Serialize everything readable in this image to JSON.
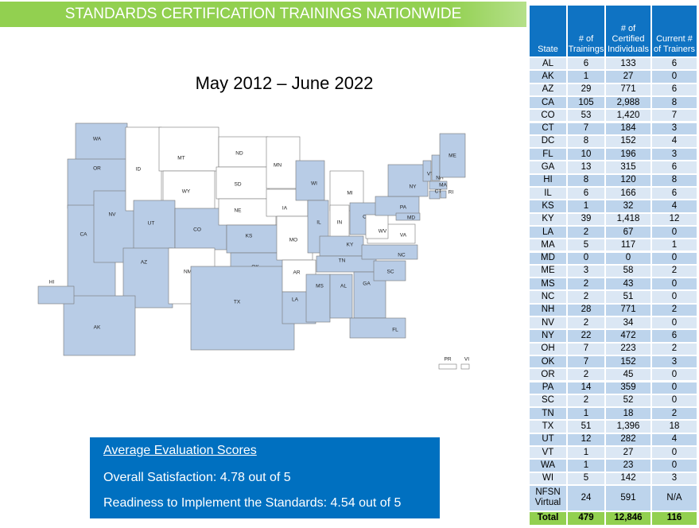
{
  "header": {
    "title": "STANDARDS CERTIFICATION TRAININGS NATIONWIDE"
  },
  "subtitle": "May 2012 – June 2022",
  "map": {
    "shaded_color": "#b8cce6",
    "unshaded_color": "#ffffff",
    "states": [
      {
        "label": "WA",
        "shaded": true
      },
      {
        "label": "OR",
        "shaded": true
      },
      {
        "label": "CA",
        "shaded": true
      },
      {
        "label": "NV",
        "shaded": true
      },
      {
        "label": "ID",
        "shaded": false
      },
      {
        "label": "MT",
        "shaded": false
      },
      {
        "label": "WY",
        "shaded": false
      },
      {
        "label": "UT",
        "shaded": true
      },
      {
        "label": "CO",
        "shaded": true
      },
      {
        "label": "AZ",
        "shaded": true
      },
      {
        "label": "NM",
        "shaded": false
      },
      {
        "label": "ND",
        "shaded": false
      },
      {
        "label": "SD",
        "shaded": false
      },
      {
        "label": "NE",
        "shaded": false
      },
      {
        "label": "KS",
        "shaded": true
      },
      {
        "label": "OK",
        "shaded": true
      },
      {
        "label": "TX",
        "shaded": true
      },
      {
        "label": "MN",
        "shaded": false
      },
      {
        "label": "IA",
        "shaded": false
      },
      {
        "label": "MO",
        "shaded": false
      },
      {
        "label": "AR",
        "shaded": false
      },
      {
        "label": "LA",
        "shaded": true
      },
      {
        "label": "WI",
        "shaded": true
      },
      {
        "label": "IL",
        "shaded": true
      },
      {
        "label": "MI",
        "shaded": false
      },
      {
        "label": "IN",
        "shaded": false
      },
      {
        "label": "OH",
        "shaded": true
      },
      {
        "label": "KY",
        "shaded": true
      },
      {
        "label": "TN",
        "shaded": true
      },
      {
        "label": "MS",
        "shaded": true
      },
      {
        "label": "AL",
        "shaded": true
      },
      {
        "label": "GA",
        "shaded": true
      },
      {
        "label": "FL",
        "shaded": true
      },
      {
        "label": "SC",
        "shaded": true
      },
      {
        "label": "NC",
        "shaded": true
      },
      {
        "label": "VA",
        "shaded": false
      },
      {
        "label": "WV",
        "shaded": false
      },
      {
        "label": "PA",
        "shaded": true
      },
      {
        "label": "NY",
        "shaded": true
      },
      {
        "label": "VT",
        "shaded": true
      },
      {
        "label": "NH",
        "shaded": true
      },
      {
        "label": "ME",
        "shaded": true
      },
      {
        "label": "MA",
        "shaded": true
      },
      {
        "label": "CT",
        "shaded": true
      },
      {
        "label": "RI",
        "shaded": true
      },
      {
        "label": "MD",
        "shaded": true
      },
      {
        "label": "AK",
        "shaded": true
      },
      {
        "label": "HI",
        "shaded": true
      },
      {
        "label": "PR",
        "shaded": false
      },
      {
        "label": "VI",
        "shaded": false
      }
    ]
  },
  "table": {
    "columns": [
      "State",
      "# of Trainings",
      "# of Certified Individuals",
      "Current # of Trainers"
    ],
    "rows": [
      [
        "AL",
        "6",
        "133",
        "6"
      ],
      [
        "AK",
        "1",
        "27",
        "0"
      ],
      [
        "AZ",
        "29",
        "771",
        "6"
      ],
      [
        "CA",
        "105",
        "2,988",
        "8"
      ],
      [
        "CO",
        "53",
        "1,420",
        "7"
      ],
      [
        "CT",
        "7",
        "184",
        "3"
      ],
      [
        "DC",
        "8",
        "152",
        "4"
      ],
      [
        "FL",
        "10",
        "196",
        "3"
      ],
      [
        "GA",
        "13",
        "315",
        "6"
      ],
      [
        "HI",
        "8",
        "120",
        "8"
      ],
      [
        "IL",
        "6",
        "166",
        "6"
      ],
      [
        "KS",
        "1",
        "32",
        "4"
      ],
      [
        "KY",
        "39",
        "1,418",
        "12"
      ],
      [
        "LA",
        "2",
        "67",
        "0"
      ],
      [
        "MA",
        "5",
        "117",
        "1"
      ],
      [
        "MD",
        "0",
        "0",
        "0"
      ],
      [
        "ME",
        "3",
        "58",
        "2"
      ],
      [
        "MS",
        "2",
        "43",
        "0"
      ],
      [
        "NC",
        "2",
        "51",
        "0"
      ],
      [
        "NH",
        "28",
        "771",
        "2"
      ],
      [
        "NV",
        "2",
        "34",
        "0"
      ],
      [
        "NY",
        "22",
        "472",
        "6"
      ],
      [
        "OH",
        "7",
        "223",
        "2"
      ],
      [
        "OK",
        "7",
        "152",
        "3"
      ],
      [
        "OR",
        "2",
        "45",
        "0"
      ],
      [
        "PA",
        "14",
        "359",
        "0"
      ],
      [
        "SC",
        "2",
        "52",
        "0"
      ],
      [
        "TN",
        "1",
        "18",
        "2"
      ],
      [
        "TX",
        "51",
        "1,396",
        "18"
      ],
      [
        "UT",
        "12",
        "282",
        "4"
      ],
      [
        "VT",
        "1",
        "27",
        "0"
      ],
      [
        "WA",
        "1",
        "23",
        "0"
      ],
      [
        "WI",
        "5",
        "142",
        "3"
      ],
      [
        "NFSN Virtual",
        "24",
        "591",
        "N/A"
      ]
    ],
    "total": [
      "Total",
      "479",
      "12,846",
      "116"
    ]
  },
  "evaluation": {
    "title": "Average Evaluation Scores",
    "items": [
      "Overall Satisfaction: 4.78 out of 5",
      "Readiness to Implement the Standards: 4.54 out of 5"
    ]
  }
}
